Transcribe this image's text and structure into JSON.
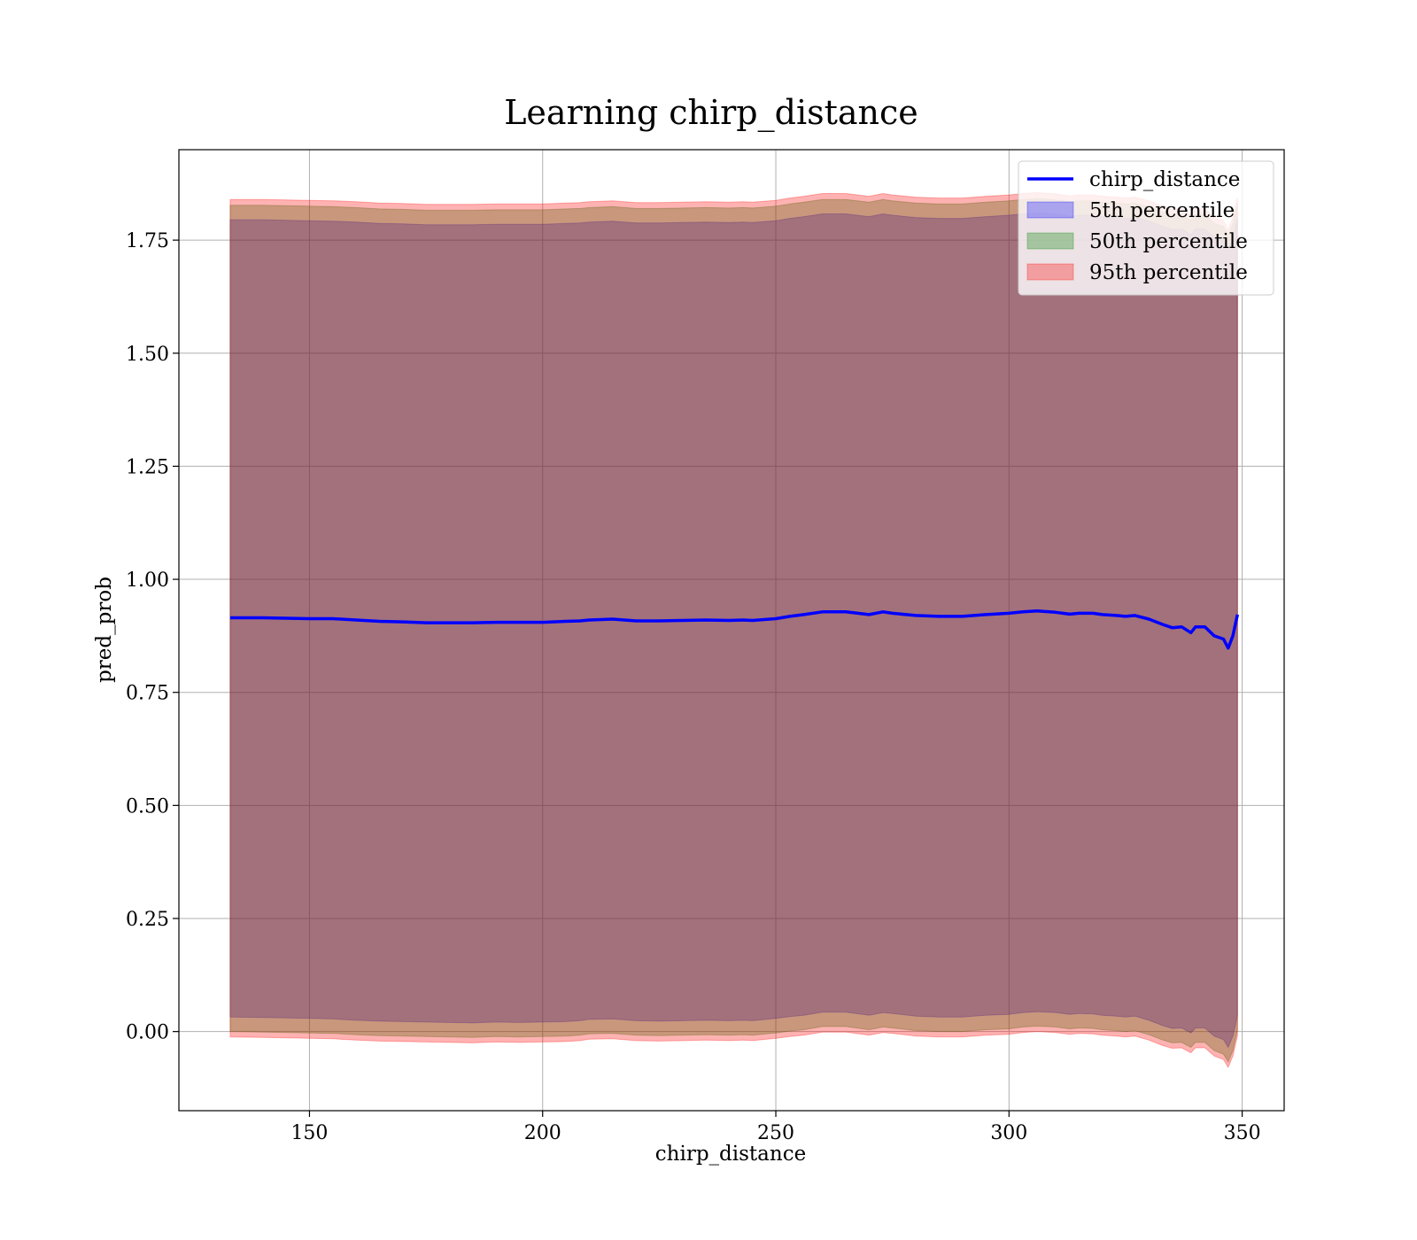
{
  "chart_data": {
    "type": "line",
    "title": "Learning chirp_distance",
    "xlabel": "chirp_distance",
    "ylabel": "pred_prob",
    "xlim": [
      122,
      359
    ],
    "ylim": [
      -0.175,
      1.95
    ],
    "xticks": [
      150,
      200,
      250,
      300,
      350
    ],
    "yticks": [
      0.0,
      0.25,
      0.5,
      0.75,
      1.0,
      1.25,
      1.5,
      1.75
    ],
    "xtick_labels": [
      "150",
      "200",
      "250",
      "300",
      "350"
    ],
    "ytick_labels": [
      "0.00",
      "0.25",
      "0.50",
      "0.75",
      "1.00",
      "1.25",
      "1.50",
      "1.75"
    ],
    "grid": true,
    "legend_position": "top-right",
    "x": [
      133,
      140,
      150,
      155,
      160,
      165,
      170,
      175,
      180,
      185,
      190,
      195,
      200,
      205,
      208,
      210,
      215,
      220,
      225,
      230,
      235,
      240,
      243,
      245,
      250,
      253,
      256,
      260,
      265,
      270,
      273,
      275,
      280,
      285,
      290,
      295,
      300,
      303,
      306,
      310,
      313,
      315,
      318,
      320,
      323,
      325,
      327,
      330,
      333,
      335,
      337,
      339,
      340,
      342,
      344,
      346,
      347,
      348,
      349
    ],
    "series": [
      {
        "name": "chirp_distance",
        "role": "line",
        "color": "#0000ff",
        "values": [
          0.915,
          0.915,
          0.913,
          0.913,
          0.91,
          0.907,
          0.906,
          0.904,
          0.904,
          0.904,
          0.905,
          0.905,
          0.905,
          0.907,
          0.908,
          0.91,
          0.912,
          0.908,
          0.908,
          0.909,
          0.91,
          0.909,
          0.91,
          0.909,
          0.913,
          0.918,
          0.922,
          0.928,
          0.928,
          0.922,
          0.928,
          0.925,
          0.92,
          0.918,
          0.918,
          0.922,
          0.925,
          0.928,
          0.93,
          0.927,
          0.923,
          0.925,
          0.925,
          0.922,
          0.92,
          0.918,
          0.92,
          0.912,
          0.9,
          0.893,
          0.895,
          0.882,
          0.895,
          0.895,
          0.875,
          0.868,
          0.848,
          0.875,
          0.922
        ]
      },
      {
        "name": "5th percentile",
        "role": "band",
        "color": "#0000ff",
        "lower": [
          0.032,
          0.031,
          0.029,
          0.028,
          0.025,
          0.023,
          0.022,
          0.021,
          0.02,
          0.019,
          0.021,
          0.02,
          0.021,
          0.022,
          0.024,
          0.027,
          0.028,
          0.024,
          0.023,
          0.024,
          0.025,
          0.024,
          0.025,
          0.024,
          0.029,
          0.033,
          0.036,
          0.043,
          0.043,
          0.036,
          0.042,
          0.04,
          0.034,
          0.032,
          0.032,
          0.036,
          0.038,
          0.042,
          0.044,
          0.042,
          0.038,
          0.04,
          0.039,
          0.036,
          0.034,
          0.032,
          0.034,
          0.025,
          0.013,
          0.007,
          0.008,
          -0.003,
          0.008,
          0.008,
          -0.01,
          -0.018,
          -0.035,
          -0.01,
          0.035
        ],
        "upper": [
          1.795,
          1.795,
          1.793,
          1.792,
          1.79,
          1.787,
          1.786,
          1.784,
          1.784,
          1.784,
          1.785,
          1.785,
          1.785,
          1.787,
          1.788,
          1.79,
          1.792,
          1.788,
          1.788,
          1.789,
          1.79,
          1.789,
          1.79,
          1.789,
          1.793,
          1.798,
          1.802,
          1.808,
          1.808,
          1.802,
          1.808,
          1.805,
          1.8,
          1.798,
          1.798,
          1.802,
          1.805,
          1.808,
          1.81,
          1.807,
          1.803,
          1.805,
          1.805,
          1.802,
          1.8,
          1.798,
          1.8,
          1.792,
          1.78,
          1.773,
          1.775,
          1.762,
          1.775,
          1.775,
          1.755,
          1.748,
          1.728,
          1.755,
          1.8
        ]
      },
      {
        "name": "50th percentile",
        "role": "band",
        "color": "#008000",
        "lower": [
          0.0,
          -0.001,
          -0.003,
          -0.004,
          -0.007,
          -0.009,
          -0.01,
          -0.011,
          -0.012,
          -0.013,
          -0.011,
          -0.012,
          -0.011,
          -0.01,
          -0.008,
          -0.005,
          -0.004,
          -0.008,
          -0.009,
          -0.008,
          -0.007,
          -0.008,
          -0.007,
          -0.008,
          -0.003,
          0.001,
          0.004,
          0.011,
          0.011,
          0.004,
          0.01,
          0.008,
          0.002,
          0.0,
          0.0,
          0.004,
          0.006,
          0.01,
          0.012,
          0.01,
          0.006,
          0.008,
          0.007,
          0.004,
          0.002,
          0.0,
          0.002,
          -0.007,
          -0.019,
          -0.025,
          -0.024,
          -0.035,
          -0.024,
          -0.024,
          -0.042,
          -0.05,
          -0.067,
          -0.042,
          0.003
        ],
        "upper": [
          1.827,
          1.827,
          1.825,
          1.824,
          1.822,
          1.819,
          1.818,
          1.816,
          1.816,
          1.816,
          1.817,
          1.817,
          1.817,
          1.819,
          1.82,
          1.822,
          1.824,
          1.82,
          1.82,
          1.821,
          1.822,
          1.821,
          1.822,
          1.821,
          1.825,
          1.83,
          1.834,
          1.84,
          1.84,
          1.834,
          1.84,
          1.837,
          1.832,
          1.83,
          1.83,
          1.834,
          1.837,
          1.84,
          1.842,
          1.839,
          1.835,
          1.837,
          1.837,
          1.834,
          1.832,
          1.83,
          1.832,
          1.824,
          1.812,
          1.805,
          1.807,
          1.794,
          1.807,
          1.807,
          1.787,
          1.78,
          1.76,
          1.787,
          1.832
        ]
      },
      {
        "name": "95th percentile",
        "role": "band",
        "color": "#ff0000",
        "lower": [
          -0.012,
          -0.013,
          -0.015,
          -0.016,
          -0.019,
          -0.021,
          -0.022,
          -0.023,
          -0.024,
          -0.025,
          -0.023,
          -0.024,
          -0.023,
          -0.022,
          -0.02,
          -0.017,
          -0.016,
          -0.02,
          -0.021,
          -0.02,
          -0.019,
          -0.02,
          -0.019,
          -0.02,
          -0.015,
          -0.011,
          -0.008,
          -0.001,
          -0.001,
          -0.008,
          -0.002,
          -0.004,
          -0.01,
          -0.012,
          -0.012,
          -0.008,
          -0.006,
          -0.002,
          0.0,
          -0.002,
          -0.006,
          -0.004,
          -0.005,
          -0.008,
          -0.01,
          -0.012,
          -0.01,
          -0.019,
          -0.031,
          -0.037,
          -0.036,
          -0.047,
          -0.036,
          -0.036,
          -0.054,
          -0.062,
          -0.079,
          -0.054,
          -0.009
        ],
        "upper": [
          1.84,
          1.84,
          1.838,
          1.837,
          1.835,
          1.832,
          1.831,
          1.829,
          1.829,
          1.829,
          1.83,
          1.83,
          1.83,
          1.832,
          1.833,
          1.835,
          1.837,
          1.833,
          1.833,
          1.834,
          1.835,
          1.834,
          1.835,
          1.834,
          1.838,
          1.843,
          1.847,
          1.853,
          1.853,
          1.847,
          1.853,
          1.85,
          1.845,
          1.843,
          1.843,
          1.847,
          1.85,
          1.853,
          1.855,
          1.852,
          1.848,
          1.85,
          1.85,
          1.847,
          1.845,
          1.843,
          1.845,
          1.837,
          1.825,
          1.818,
          1.82,
          1.807,
          1.82,
          1.82,
          1.8,
          1.793,
          1.773,
          1.8,
          1.845
        ]
      }
    ]
  }
}
